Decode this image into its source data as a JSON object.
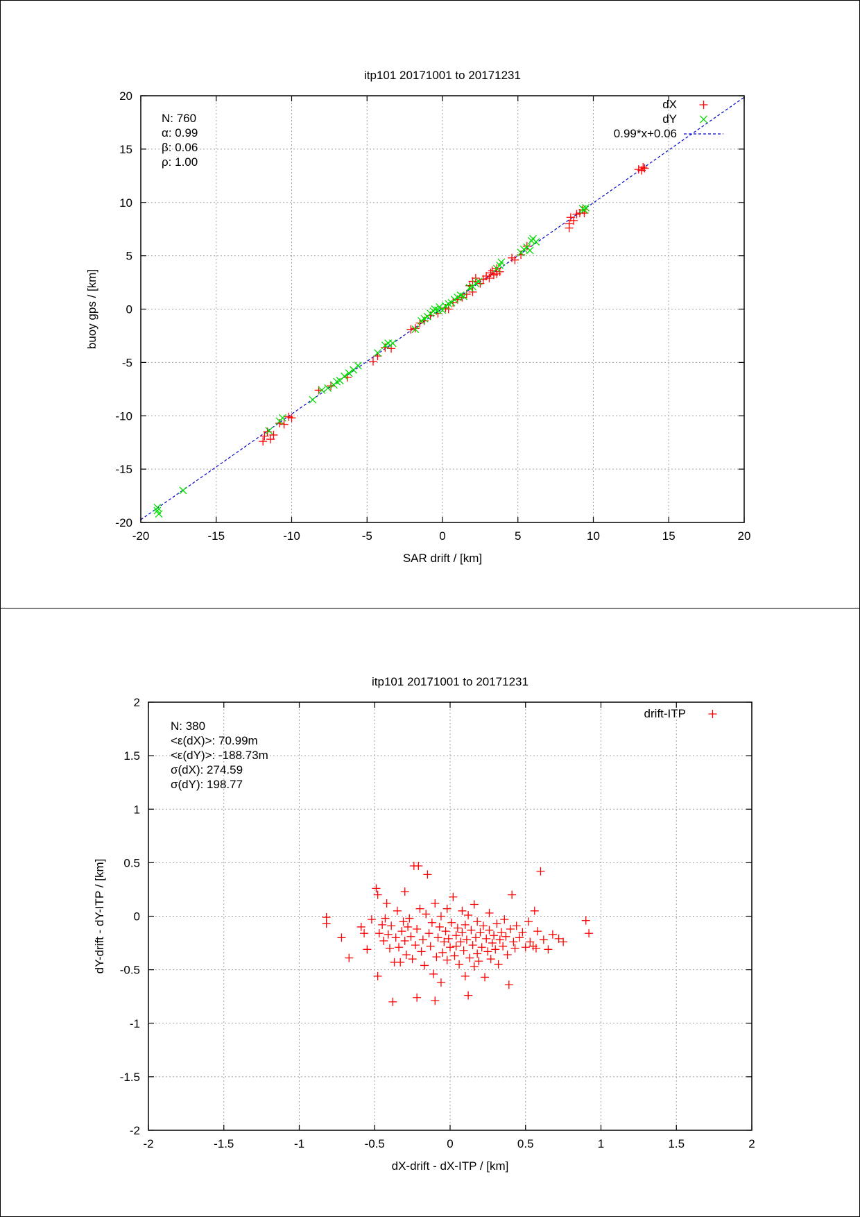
{
  "chart_data": [
    {
      "type": "scatter",
      "title": "itp101 20171001 to 20171231",
      "xlabel": "SAR drift / [km]",
      "ylabel": "buoy gps / [km]",
      "xlim": [
        -20,
        20
      ],
      "ylim": [
        -20,
        20
      ],
      "xticks": [
        "-20",
        "-15",
        "-10",
        "-5",
        "0",
        "5",
        "10",
        "15",
        "20"
      ],
      "yticks": [
        "-20",
        "-15",
        "-10",
        "-5",
        "0",
        "5",
        "10",
        "15",
        "20"
      ],
      "grid": true,
      "legend_position": "top-right",
      "stats": [
        "N: 760",
        "α: 0.99",
        "β: 0.06",
        "ρ: 1.00"
      ],
      "fit_line": {
        "name": "0.99*x+0.06",
        "slope": 0.99,
        "intercept": 0.06,
        "color": "#0000cc"
      },
      "series": [
        {
          "name": "dX",
          "marker": "plus",
          "color": "#ff0000",
          "points": [
            [
              -11.9,
              -12.4
            ],
            [
              -11.8,
              -11.9
            ],
            [
              -11.6,
              -11.5
            ],
            [
              -11.4,
              -12.2
            ],
            [
              -11.2,
              -11.8
            ],
            [
              -10.8,
              -10.7
            ],
            [
              -10.5,
              -10.8
            ],
            [
              -10.2,
              -10.1
            ],
            [
              -10.0,
              -10.2
            ],
            [
              -8.2,
              -7.6
            ],
            [
              -7.4,
              -7.2
            ],
            [
              -6.3,
              -6.4
            ],
            [
              -4.6,
              -4.9
            ],
            [
              -4.3,
              -4.4
            ],
            [
              -3.8,
              -3.6
            ],
            [
              -3.4,
              -3.7
            ],
            [
              -2.1,
              -1.9
            ],
            [
              -1.8,
              -1.8
            ],
            [
              -1.5,
              -1.3
            ],
            [
              -1.2,
              -1.1
            ],
            [
              -0.8,
              -0.6
            ],
            [
              -0.3,
              -0.4
            ],
            [
              0.2,
              0.1
            ],
            [
              0.4,
              0.0
            ],
            [
              0.7,
              0.6
            ],
            [
              1.0,
              0.9
            ],
            [
              1.3,
              1.1
            ],
            [
              1.6,
              1.4
            ],
            [
              1.8,
              2.2
            ],
            [
              2.0,
              2.6
            ],
            [
              2.0,
              1.6
            ],
            [
              2.2,
              2.9
            ],
            [
              2.5,
              2.4
            ],
            [
              2.7,
              2.8
            ],
            [
              2.9,
              3.1
            ],
            [
              3.1,
              2.9
            ],
            [
              3.2,
              3.4
            ],
            [
              3.3,
              3.6
            ],
            [
              3.4,
              3.2
            ],
            [
              3.6,
              3.8
            ],
            [
              3.6,
              3.3
            ],
            [
              3.8,
              3.5
            ],
            [
              4.6,
              4.8
            ],
            [
              4.8,
              4.6
            ],
            [
              5.2,
              5.1
            ],
            [
              5.6,
              5.9
            ],
            [
              8.4,
              8.0
            ],
            [
              8.4,
              7.6
            ],
            [
              8.5,
              8.6
            ],
            [
              8.7,
              8.3
            ],
            [
              8.9,
              8.9
            ],
            [
              9.1,
              9.0
            ],
            [
              9.3,
              9.3
            ],
            [
              9.4,
              9.0
            ],
            [
              13.0,
              13.1
            ],
            [
              13.2,
              13.0
            ],
            [
              13.4,
              13.2
            ],
            [
              13.3,
              13.3
            ]
          ]
        },
        {
          "name": "dY",
          "marker": "cross",
          "color": "#00dd00",
          "points": [
            [
              -18.9,
              -18.6
            ],
            [
              -18.9,
              -18.9
            ],
            [
              -18.8,
              -19.2
            ],
            [
              -17.2,
              -17.0
            ],
            [
              -11.5,
              -11.4
            ],
            [
              -10.8,
              -10.5
            ],
            [
              -10.6,
              -10.2
            ],
            [
              -8.6,
              -8.5
            ],
            [
              -8.0,
              -7.6
            ],
            [
              -7.6,
              -7.4
            ],
            [
              -7.2,
              -7.1
            ],
            [
              -7.0,
              -6.8
            ],
            [
              -6.8,
              -6.7
            ],
            [
              -6.5,
              -6.3
            ],
            [
              -6.2,
              -6.0
            ],
            [
              -5.9,
              -5.7
            ],
            [
              -5.6,
              -5.3
            ],
            [
              -4.3,
              -4.1
            ],
            [
              -3.8,
              -3.4
            ],
            [
              -3.6,
              -3.2
            ],
            [
              -3.3,
              -3.2
            ],
            [
              -1.8,
              -1.9
            ],
            [
              -1.4,
              -1.1
            ],
            [
              -1.2,
              -0.9
            ],
            [
              -1.0,
              -0.7
            ],
            [
              -0.8,
              -0.4
            ],
            [
              -0.6,
              -0.2
            ],
            [
              -0.5,
              0.0
            ],
            [
              -0.3,
              -0.1
            ],
            [
              -0.2,
              0.2
            ],
            [
              0.0,
              -0.1
            ],
            [
              0.2,
              0.3
            ],
            [
              0.4,
              0.5
            ],
            [
              0.6,
              0.6
            ],
            [
              0.8,
              0.9
            ],
            [
              1.0,
              1.1
            ],
            [
              1.2,
              1.3
            ],
            [
              1.4,
              1.2
            ],
            [
              1.8,
              2.0
            ],
            [
              2.0,
              2.1
            ],
            [
              2.2,
              2.4
            ],
            [
              2.4,
              2.6
            ],
            [
              3.6,
              3.8
            ],
            [
              3.8,
              4.1
            ],
            [
              3.9,
              4.4
            ],
            [
              5.2,
              5.3
            ],
            [
              5.4,
              5.6
            ],
            [
              5.6,
              5.8
            ],
            [
              5.8,
              5.5
            ],
            [
              5.9,
              6.4
            ],
            [
              6.0,
              6.6
            ],
            [
              6.2,
              6.3
            ],
            [
              9.4,
              9.3
            ],
            [
              9.5,
              9.5
            ],
            [
              9.3,
              9.4
            ]
          ]
        }
      ]
    },
    {
      "type": "scatter",
      "title": "itp101 20171001 to 20171231",
      "xlabel": "dX-drift - dX-ITP / [km]",
      "ylabel": "dY-drift - dY-ITP / [km]",
      "xlim": [
        -2,
        2
      ],
      "ylim": [
        -2,
        2
      ],
      "xticks": [
        "-2",
        "-1.5",
        "-1",
        "-0.5",
        "0",
        "0.5",
        "1",
        "1.5",
        "2"
      ],
      "yticks": [
        "-2",
        "-1.5",
        "-1",
        "-0.5",
        "0",
        "0.5",
        "1",
        "1.5",
        "2"
      ],
      "grid": true,
      "legend_position": "top-right",
      "stats": [
        "N: 380",
        "<ε(dX)>:  70.99m",
        "<ε(dY)>: -188.73m",
        "σ(dX):  274.59",
        "σ(dY):  198.77"
      ],
      "series": [
        {
          "name": "drift-ITP",
          "marker": "plus",
          "color": "#ff0000",
          "points": [
            [
              -0.82,
              -0.01
            ],
            [
              -0.82,
              -0.07
            ],
            [
              -0.72,
              -0.2
            ],
            [
              -0.67,
              -0.39
            ],
            [
              -0.59,
              -0.1
            ],
            [
              -0.57,
              -0.16
            ],
            [
              -0.55,
              -0.31
            ],
            [
              -0.52,
              -0.03
            ],
            [
              -0.49,
              0.26
            ],
            [
              -0.48,
              0.2
            ],
            [
              -0.48,
              -0.56
            ],
            [
              -0.47,
              -0.16
            ],
            [
              -0.45,
              -0.08
            ],
            [
              -0.44,
              -0.23
            ],
            [
              -0.43,
              -0.02
            ],
            [
              -0.42,
              0.12
            ],
            [
              -0.41,
              -0.17
            ],
            [
              -0.4,
              -0.3
            ],
            [
              -0.39,
              -0.09
            ],
            [
              -0.38,
              -0.8
            ],
            [
              -0.37,
              -0.43
            ],
            [
              -0.36,
              -0.2
            ],
            [
              -0.35,
              0.05
            ],
            [
              -0.34,
              -0.29
            ],
            [
              -0.33,
              -0.43
            ],
            [
              -0.32,
              -0.14
            ],
            [
              -0.31,
              -0.05
            ],
            [
              -0.3,
              0.23
            ],
            [
              -0.3,
              -0.23
            ],
            [
              -0.29,
              -0.36
            ],
            [
              -0.28,
              -0.1
            ],
            [
              -0.27,
              -0.02
            ],
            [
              -0.26,
              -0.19
            ],
            [
              -0.25,
              -0.4
            ],
            [
              -0.24,
              0.47
            ],
            [
              -0.23,
              -0.27
            ],
            [
              -0.22,
              -0.12
            ],
            [
              -0.22,
              -0.76
            ],
            [
              -0.21,
              0.47
            ],
            [
              -0.2,
              0.07
            ],
            [
              -0.19,
              -0.33
            ],
            [
              -0.18,
              -0.22
            ],
            [
              -0.17,
              -0.46
            ],
            [
              -0.16,
              0.02
            ],
            [
              -0.15,
              0.39
            ],
            [
              -0.14,
              -0.16
            ],
            [
              -0.13,
              -0.28
            ],
            [
              -0.12,
              -0.06
            ],
            [
              -0.11,
              -0.54
            ],
            [
              -0.1,
              -0.79
            ],
            [
              -0.1,
              0.12
            ],
            [
              -0.09,
              -0.38
            ],
            [
              -0.08,
              -0.2
            ],
            [
              -0.07,
              -0.1
            ],
            [
              -0.06,
              -0.62
            ],
            [
              -0.06,
              0.0
            ],
            [
              -0.05,
              -0.34
            ],
            [
              -0.04,
              -0.24
            ],
            [
              -0.03,
              -0.14
            ],
            [
              -0.02,
              0.07
            ],
            [
              -0.02,
              -0.41
            ],
            [
              -0.01,
              -0.21
            ],
            [
              0.0,
              -0.29
            ],
            [
              0.01,
              -0.06
            ],
            [
              0.02,
              0.18
            ],
            [
              0.03,
              -0.37
            ],
            [
              0.04,
              -0.18
            ],
            [
              0.04,
              -0.28
            ],
            [
              0.05,
              -0.11
            ],
            [
              0.06,
              -0.45
            ],
            [
              0.07,
              -0.24
            ],
            [
              0.08,
              0.05
            ],
            [
              0.08,
              -0.15
            ],
            [
              0.09,
              -0.32
            ],
            [
              0.1,
              -0.08
            ],
            [
              0.1,
              -0.56
            ],
            [
              0.11,
              -0.22
            ],
            [
              0.12,
              -0.74
            ],
            [
              0.12,
              0.01
            ],
            [
              0.13,
              -0.39
            ],
            [
              0.14,
              -0.13
            ],
            [
              0.15,
              -0.27
            ],
            [
              0.16,
              0.11
            ],
            [
              0.16,
              -0.47
            ],
            [
              0.17,
              -0.2
            ],
            [
              0.18,
              -0.05
            ],
            [
              0.18,
              -0.35
            ],
            [
              0.19,
              -0.42
            ],
            [
              0.2,
              -0.15
            ],
            [
              0.21,
              -0.29
            ],
            [
              0.22,
              -0.09
            ],
            [
              0.23,
              -0.57
            ],
            [
              0.24,
              -0.21
            ],
            [
              0.25,
              -0.33
            ],
            [
              0.26,
              0.03
            ],
            [
              0.26,
              -0.13
            ],
            [
              0.27,
              -0.4
            ],
            [
              0.28,
              -0.25
            ],
            [
              0.29,
              -0.18
            ],
            [
              0.3,
              -0.31
            ],
            [
              0.31,
              -0.07
            ],
            [
              0.32,
              -0.45
            ],
            [
              0.33,
              -0.22
            ],
            [
              0.34,
              -0.15
            ],
            [
              0.35,
              -0.28
            ],
            [
              0.36,
              -0.03
            ],
            [
              0.37,
              -0.19
            ],
            [
              0.38,
              -0.36
            ],
            [
              0.39,
              -0.64
            ],
            [
              0.4,
              -0.12
            ],
            [
              0.41,
              0.2
            ],
            [
              0.42,
              -0.24
            ],
            [
              0.43,
              -0.3
            ],
            [
              0.44,
              -0.09
            ],
            [
              0.46,
              -0.2
            ],
            [
              0.48,
              -0.15
            ],
            [
              0.5,
              -0.29
            ],
            [
              0.52,
              -0.05
            ],
            [
              0.53,
              -0.24
            ],
            [
              0.55,
              -0.28
            ],
            [
              0.56,
              0.05
            ],
            [
              0.57,
              -0.3
            ],
            [
              0.58,
              -0.14
            ],
            [
              0.6,
              0.42
            ],
            [
              0.62,
              -0.22
            ],
            [
              0.65,
              -0.31
            ],
            [
              0.68,
              -0.17
            ],
            [
              0.72,
              -0.21
            ],
            [
              0.75,
              -0.24
            ],
            [
              0.9,
              -0.04
            ],
            [
              0.92,
              -0.16
            ]
          ]
        }
      ]
    }
  ]
}
